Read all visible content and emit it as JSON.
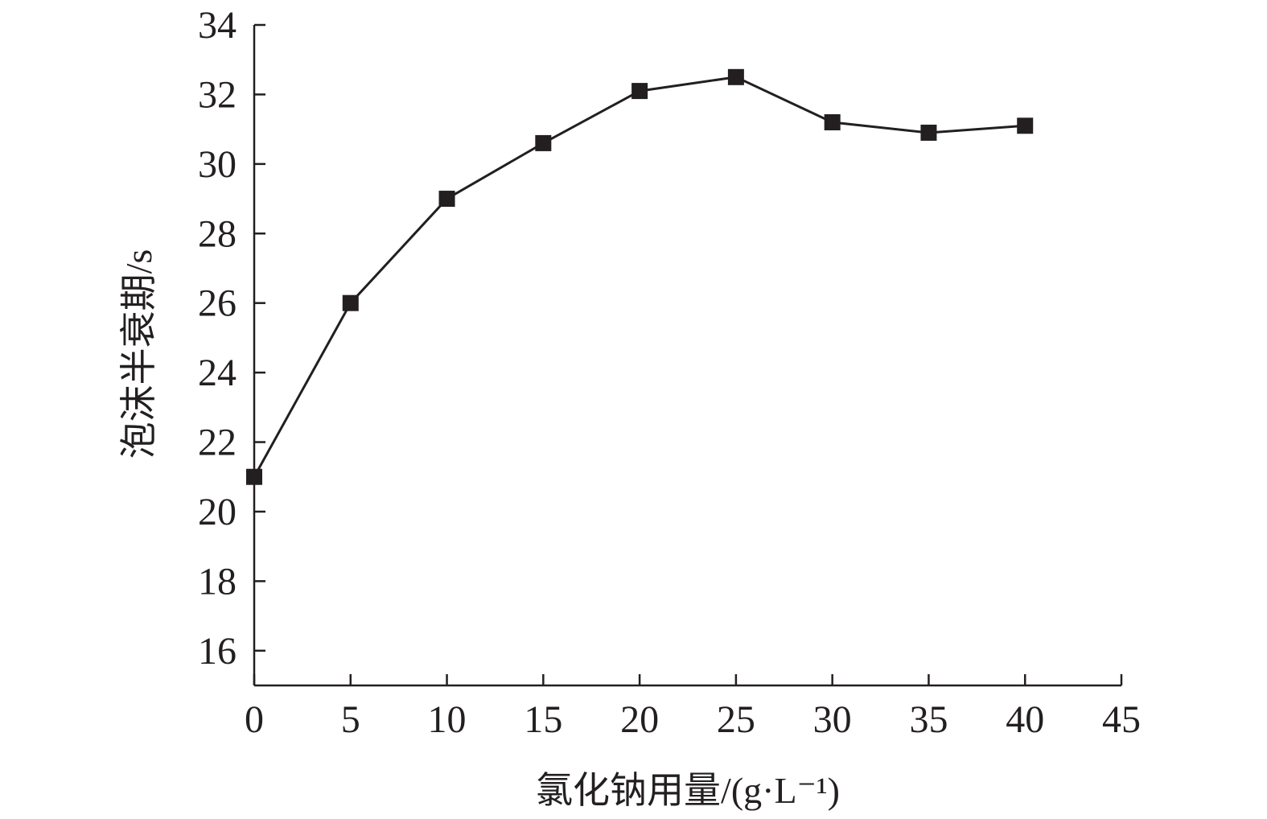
{
  "chart_data": {
    "type": "line",
    "xlabel": "氯化钠用量/(g·L⁻¹)",
    "ylabel": "泡沫半衰期/s",
    "xlim": [
      0,
      45
    ],
    "ylim": [
      15,
      34
    ],
    "x_ticks": [
      0,
      5,
      10,
      15,
      20,
      25,
      30,
      35,
      40,
      45
    ],
    "y_ticks": [
      16,
      18,
      20,
      22,
      24,
      26,
      28,
      30,
      32,
      34
    ],
    "grid": false,
    "marker": "square",
    "colors": {
      "series": "#231f20",
      "axis": "#231f20"
    },
    "series": [
      {
        "x": [
          0,
          5,
          10,
          15,
          20,
          25,
          30,
          35,
          40
        ],
        "y": [
          21.0,
          26.0,
          29.0,
          30.6,
          32.1,
          32.5,
          31.2,
          30.9,
          31.1
        ]
      }
    ]
  }
}
